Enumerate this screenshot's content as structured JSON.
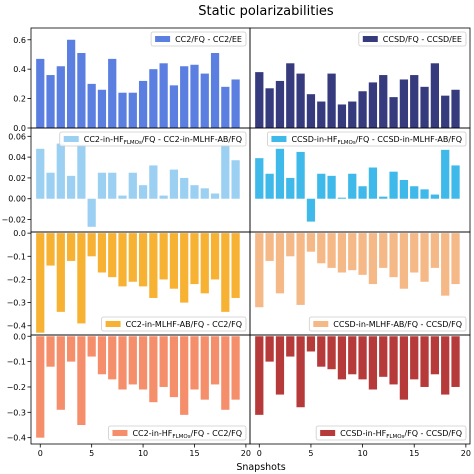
{
  "figure": {
    "title": "Static polarizabilities",
    "xlabel": "Snapshots"
  },
  "chart_data": [
    {
      "type": "bar",
      "row": 0,
      "col": 0,
      "color": "#5b7fe0",
      "legend": {
        "main": "CC2/FQ - CC2/EE",
        "sub": "",
        "after": "",
        "placement": "upper-right"
      },
      "x": [
        0,
        1,
        2,
        3,
        4,
        5,
        6,
        7,
        8,
        9,
        10,
        11,
        12,
        13,
        14,
        15,
        16,
        17,
        18,
        19
      ],
      "values": [
        0.47,
        0.36,
        0.42,
        0.6,
        0.51,
        0.3,
        0.26,
        0.47,
        0.24,
        0.24,
        0.32,
        0.4,
        0.44,
        0.29,
        0.42,
        0.43,
        0.37,
        0.51,
        0.28,
        0.33
      ],
      "ylim": [
        0,
        0.68
      ],
      "yticks": [
        0,
        0.2,
        0.4,
        0.6
      ],
      "ytick_labels": [
        "0.0",
        "0.2",
        "0.4",
        "0.6"
      ]
    },
    {
      "type": "bar",
      "row": 0,
      "col": 1,
      "color": "#363b7e",
      "legend": {
        "main": "CCSD/FQ - CCSD/EE",
        "sub": "",
        "after": "",
        "placement": "upper-right"
      },
      "x": [
        0,
        1,
        2,
        3,
        4,
        5,
        6,
        7,
        8,
        9,
        10,
        11,
        12,
        13,
        14,
        15,
        16,
        17,
        18,
        19
      ],
      "values": [
        0.38,
        0.27,
        0.32,
        0.44,
        0.37,
        0.23,
        0.18,
        0.37,
        0.16,
        0.18,
        0.25,
        0.31,
        0.36,
        0.21,
        0.33,
        0.36,
        0.28,
        0.44,
        0.22,
        0.26
      ],
      "ylim": [
        0,
        0.68
      ],
      "yticks": [
        0,
        0.2,
        0.4,
        0.6
      ],
      "ytick_labels": [
        "0.0",
        "0.2",
        "0.4",
        "0.6"
      ]
    },
    {
      "type": "bar",
      "row": 1,
      "col": 0,
      "color": "#9bd0f2",
      "legend": {
        "main": "CC2-in-HF",
        "sub": "FLMOs",
        "after": "/FQ - CC2-in-MLHF-AB/FQ",
        "placement": "upper-right"
      },
      "x": [
        0,
        1,
        2,
        3,
        4,
        5,
        6,
        7,
        8,
        9,
        10,
        11,
        12,
        13,
        14,
        15,
        16,
        17,
        18,
        19
      ],
      "values": [
        0.048,
        0.025,
        0.053,
        0.022,
        0.052,
        -0.027,
        0.025,
        0.025,
        0.003,
        0.025,
        0.013,
        0.032,
        0.003,
        0.028,
        0.02,
        0.013,
        0.01,
        0.005,
        0.052,
        0.037
      ],
      "ylim": [
        -0.032,
        0.068
      ],
      "yticks": [
        -0.02,
        0,
        0.02,
        0.04,
        0.06
      ],
      "ytick_labels": [
        "−0.02",
        "0.00",
        "0.02",
        "0.04",
        "0.06"
      ]
    },
    {
      "type": "bar",
      "row": 1,
      "col": 1,
      "color": "#3fb9e9",
      "legend": {
        "main": "CCSD-in-HF",
        "sub": "FLMOs",
        "after": "/FQ - CCSD-in-MLHF-AB/FQ",
        "placement": "upper-right"
      },
      "x": [
        0,
        1,
        2,
        3,
        4,
        5,
        6,
        7,
        8,
        9,
        10,
        11,
        12,
        13,
        14,
        15,
        16,
        17,
        18,
        19
      ],
      "values": [
        0.039,
        0.024,
        0.048,
        0.02,
        0.045,
        -0.022,
        0.024,
        0.022,
        0.001,
        0.024,
        0.012,
        0.03,
        0.002,
        0.026,
        0.018,
        0.012,
        0.009,
        0.004,
        0.047,
        0.032
      ],
      "ylim": [
        -0.032,
        0.068
      ],
      "yticks": [
        -0.02,
        0,
        0.02,
        0.04,
        0.06
      ],
      "ytick_labels": [
        "−0.02",
        "0.00",
        "0.02",
        "0.04",
        "0.06"
      ]
    },
    {
      "type": "bar",
      "row": 2,
      "col": 0,
      "color": "#f7b233",
      "legend": {
        "main": "CC2-in-MLHF-AB/FQ - CC2/FQ",
        "sub": "",
        "after": "",
        "placement": "lower-right"
      },
      "x": [
        0,
        1,
        2,
        3,
        4,
        5,
        6,
        7,
        8,
        9,
        10,
        11,
        12,
        13,
        14,
        15,
        16,
        17,
        18,
        19
      ],
      "values": [
        -0.43,
        -0.14,
        -0.34,
        -0.12,
        -0.39,
        -0.1,
        -0.17,
        -0.19,
        -0.23,
        -0.21,
        -0.23,
        -0.28,
        -0.2,
        -0.24,
        -0.3,
        -0.22,
        -0.26,
        -0.2,
        -0.34,
        -0.28
      ],
      "ylim": [
        -0.44,
        0.005
      ],
      "yticks": [
        -0.4,
        -0.3,
        -0.2,
        -0.1,
        0
      ],
      "ytick_labels": [
        "−0.4",
        "−0.3",
        "−0.2",
        "−0.1",
        "0.0"
      ]
    },
    {
      "type": "bar",
      "row": 2,
      "col": 1,
      "color": "#f5b887",
      "legend": {
        "main": "CCSD-in-MLHF-AB/FQ - CCSD/FQ",
        "sub": "",
        "after": "",
        "placement": "lower-right"
      },
      "x": [
        0,
        1,
        2,
        3,
        4,
        5,
        6,
        7,
        8,
        9,
        10,
        11,
        12,
        13,
        14,
        15,
        16,
        17,
        18,
        19
      ],
      "values": [
        -0.32,
        -0.12,
        -0.26,
        -0.1,
        -0.31,
        -0.08,
        -0.13,
        -0.15,
        -0.17,
        -0.16,
        -0.18,
        -0.22,
        -0.15,
        -0.19,
        -0.24,
        -0.17,
        -0.21,
        -0.15,
        -0.27,
        -0.22
      ],
      "ylim": [
        -0.44,
        0.005
      ],
      "yticks": [
        -0.4,
        -0.3,
        -0.2,
        -0.1,
        0
      ],
      "ytick_labels": [
        "−0.4",
        "−0.3",
        "−0.2",
        "−0.1",
        "0.0"
      ]
    },
    {
      "type": "bar",
      "row": 3,
      "col": 0,
      "color": "#f58e6b",
      "legend": {
        "main": "CC2-in-HF",
        "sub": "FLMOs",
        "after": "/FQ - CC2/FQ",
        "placement": "lower-right"
      },
      "x": [
        0,
        1,
        2,
        3,
        4,
        5,
        6,
        7,
        8,
        9,
        10,
        11,
        12,
        13,
        14,
        15,
        16,
        17,
        18,
        19
      ],
      "values": [
        -0.4,
        -0.12,
        -0.29,
        -0.1,
        -0.35,
        -0.08,
        -0.15,
        -0.17,
        -0.21,
        -0.19,
        -0.21,
        -0.26,
        -0.2,
        -0.24,
        -0.31,
        -0.21,
        -0.25,
        -0.19,
        -0.29,
        -0.25
      ],
      "ylim": [
        -0.425,
        0.005
      ],
      "yticks": [
        -0.4,
        -0.3,
        -0.2,
        -0.1,
        0
      ],
      "ytick_labels": [
        "−0.4",
        "−0.3",
        "−0.2",
        "−0.1",
        "0.0"
      ]
    },
    {
      "type": "bar",
      "row": 3,
      "col": 1,
      "color": "#b63a3a",
      "legend": {
        "main": "CCSD-in-HF",
        "sub": "FLMOs",
        "after": "/FQ - CCSD/FQ",
        "placement": "lower-right"
      },
      "x": [
        0,
        1,
        2,
        3,
        4,
        5,
        6,
        7,
        8,
        9,
        10,
        11,
        12,
        13,
        14,
        15,
        16,
        17,
        18,
        19
      ],
      "values": [
        -0.31,
        -0.1,
        -0.23,
        -0.08,
        -0.28,
        -0.06,
        -0.12,
        -0.13,
        -0.17,
        -0.15,
        -0.17,
        -0.21,
        -0.16,
        -0.19,
        -0.25,
        -0.17,
        -0.2,
        -0.15,
        -0.23,
        -0.2
      ],
      "ylim": [
        -0.425,
        0.005
      ],
      "yticks": [
        -0.4,
        -0.3,
        -0.2,
        -0.1,
        0
      ],
      "ytick_labels": [
        "−0.4",
        "−0.3",
        "−0.2",
        "−0.1",
        "0.0"
      ]
    }
  ],
  "xticks": [
    0,
    5,
    10,
    15,
    20
  ],
  "xtick_labels": [
    "0",
    "5",
    "10",
    "15",
    "20"
  ],
  "xlim": [
    -0.9,
    20.4
  ]
}
